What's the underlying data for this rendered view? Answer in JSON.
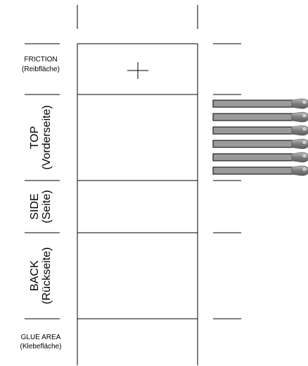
{
  "sections": [
    {
      "id": "friction",
      "label": "FRICTION",
      "sublabel": "(Reibfläche)"
    },
    {
      "id": "top",
      "label": "TOP",
      "sublabel": "(Vorderseite)"
    },
    {
      "id": "side",
      "label": "SIDE",
      "sublabel": "(Seite)"
    },
    {
      "id": "back",
      "label": "BACK",
      "sublabel": "(Rückseite)"
    },
    {
      "id": "glue",
      "label": "GLUE AREA",
      "sublabel": "(Klebefläche)"
    }
  ],
  "matches": {
    "count": 6,
    "stick_color": "#9a9a9a",
    "head_color": "#8a8a8a"
  },
  "colors": {
    "line": "#000000",
    "background": "#ffffff"
  }
}
